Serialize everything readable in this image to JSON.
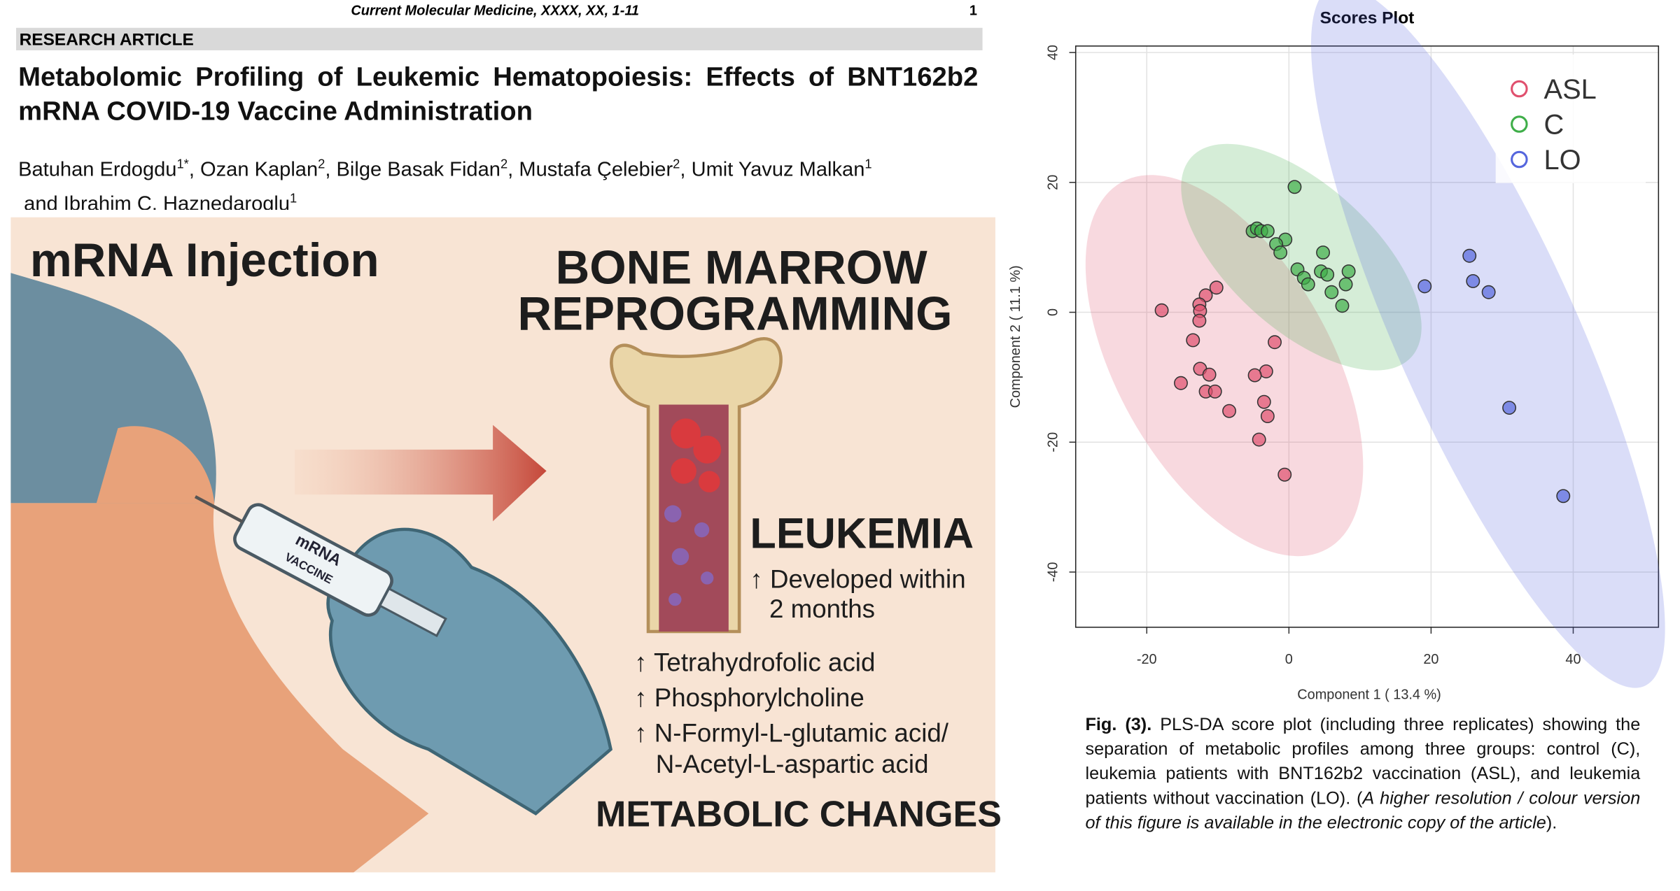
{
  "header": {
    "journal": "Current Molecular Medicine, XXXX, XX, 1-11",
    "page": "1",
    "section": "RESEARCH ARTICLE"
  },
  "article": {
    "title": "Metabolomic Profiling of Leukemic Hematopoiesis: Effects of BNT162b2 mRNA COVID-19 Vaccine Administration",
    "authors": [
      {
        "name": "Batuhan Erdogdu",
        "affil": "1*"
      },
      {
        "name": "Ozan Kaplan",
        "affil": "2"
      },
      {
        "name": "Bilge Basak Fidan",
        "affil": "2"
      },
      {
        "name": "Mustafa Çelebier",
        "affil": "2"
      },
      {
        "name": "Umit Yavuz Malkan",
        "affil": "1"
      },
      {
        "name": "Ibrahim C. Haznedaroglu",
        "affil": "1"
      }
    ],
    "author_joiners": [
      ", ",
      ", ",
      ", ",
      ", ",
      " and "
    ]
  },
  "illustration": {
    "left_title": "mRNA Injection",
    "right_title": [
      "BONE MARROW",
      "REPROGRAMMING"
    ],
    "syringe": [
      "mRNA",
      "VACCINE"
    ],
    "leukemia": "LEUKEMIA",
    "leukemia_note": [
      "↑ Developed within",
      "2 months"
    ],
    "metabolites": [
      "↑ Tetrahydrofolic acid",
      "↑ Phosphorylcholine",
      "↑ N-Formyl-L-glutamic acid/",
      "N-Acetyl-L-aspartic acid"
    ],
    "footer": "METABOLIC CHANGES"
  },
  "chart_data": {
    "type": "scatter",
    "title": "Scores Plot",
    "x_label": "Component 1 ( 13.4 %)",
    "y_label": "Component 2 ( 11.1 %)",
    "xlim": [
      -30,
      52
    ],
    "ylim": [
      -48.5,
      41
    ],
    "xticks": [
      -20,
      0,
      20,
      40
    ],
    "yticks": [
      -40,
      -20,
      0,
      20,
      40
    ],
    "grid": true,
    "legend": "topright",
    "series": [
      {
        "name": "ASL",
        "color": "#e0506e",
        "x": [
          -17.9,
          -10.2,
          -11.7,
          -12.6,
          -12.5,
          -12.6,
          -13.5,
          -12.5,
          -11.2,
          -15.2,
          -11.7,
          -10.4,
          -8.4,
          -2.0,
          -3.2,
          -4.8,
          -3.5,
          -3.0,
          -4.2,
          -0.6
        ],
        "values": [
          0.3,
          3.8,
          2.6,
          1.2,
          0.2,
          -1.3,
          -4.3,
          -8.7,
          -9.6,
          -10.9,
          -12.2,
          -12.2,
          -15.2,
          -4.6,
          -9.1,
          -9.7,
          -13.8,
          -16.0,
          -19.6,
          -25.0
        ]
      },
      {
        "name": "C",
        "color": "#3fae49",
        "x": [
          0.8,
          -5.1,
          -4.5,
          -3.9,
          -3.0,
          -0.5,
          -1.8,
          -1.2,
          1.2,
          2.1,
          2.7,
          4.8,
          4.5,
          5.4,
          8.4,
          8.0,
          6.0,
          7.5
        ],
        "values": [
          19.3,
          12.5,
          12.9,
          12.5,
          12.5,
          11.2,
          10.5,
          9.2,
          6.6,
          5.3,
          4.3,
          9.2,
          6.3,
          5.8,
          6.3,
          4.3,
          3.1,
          1.0
        ]
      },
      {
        "name": "LO",
        "color": "#5566dd",
        "x": [
          19.1,
          25.4,
          25.9,
          28.1,
          31.0,
          38.6
        ],
        "values": [
          4.0,
          8.7,
          4.8,
          3.1,
          -14.7,
          -28.3
        ]
      }
    ]
  },
  "caption": {
    "label": "Fig. (3).",
    "text": " PLS-DA score plot (including three replicates) showing the separation of metabolic profiles among three groups: control (C), leukemia patients with BNT162b2 vaccination (ASL), and leukemia patients without vaccination (LO). (",
    "italic": "A higher resolution / colour version of this figure is available in the electronic copy of the article",
    "end": ")."
  }
}
